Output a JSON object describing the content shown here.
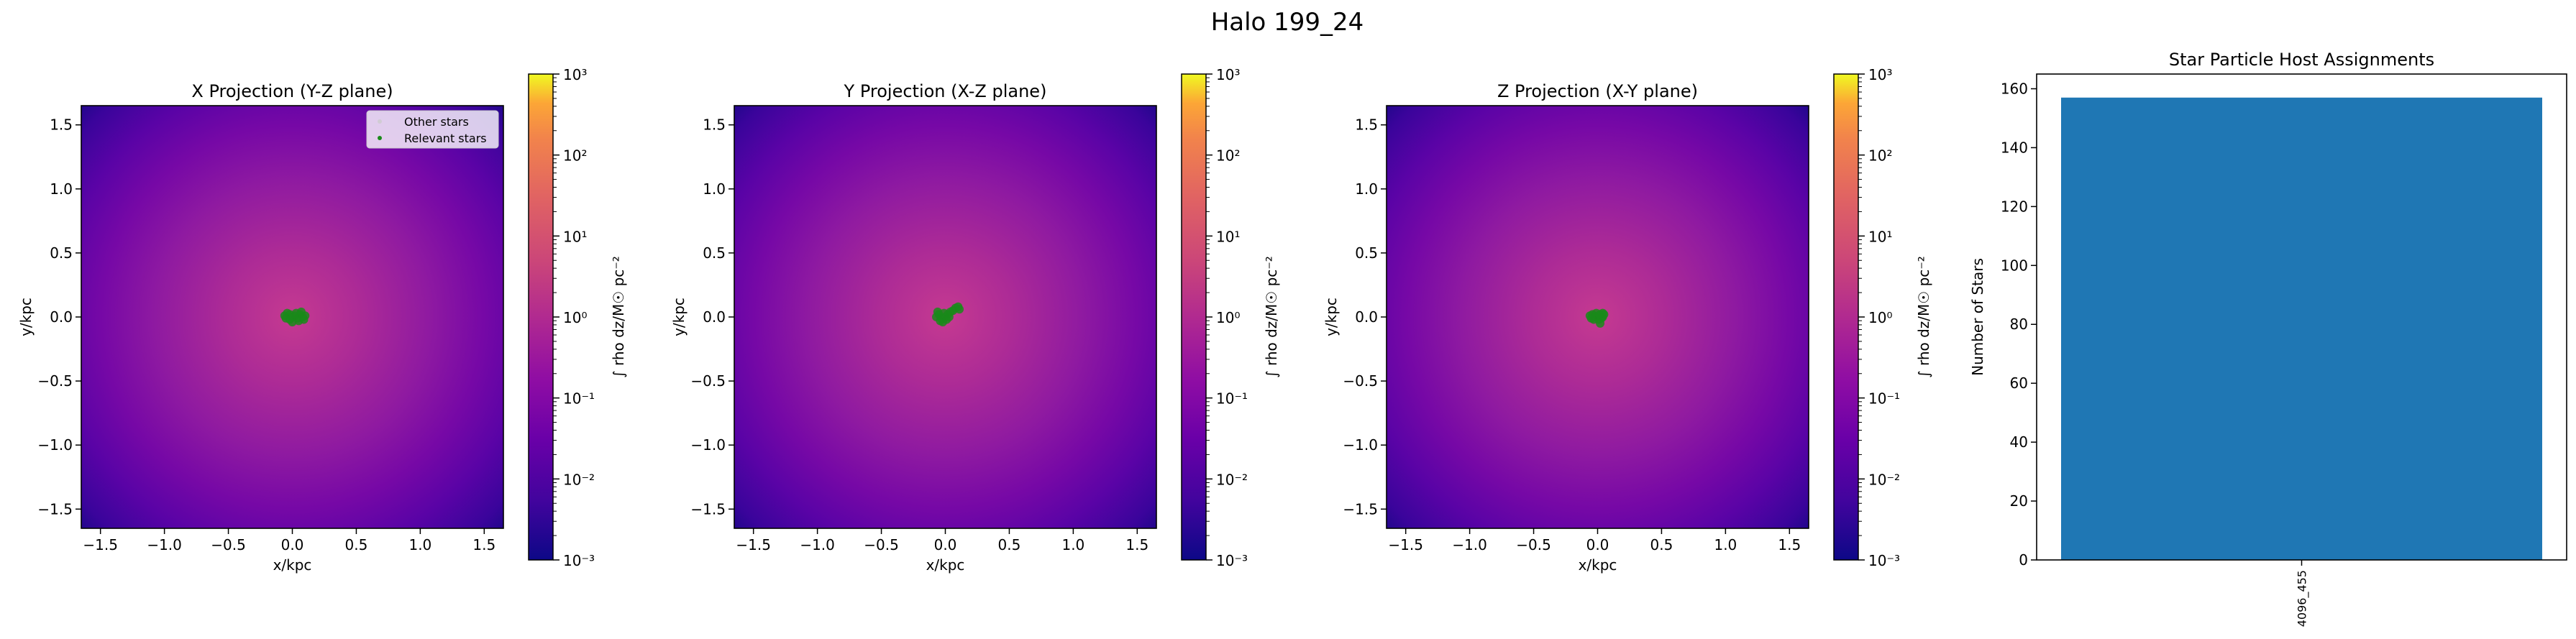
{
  "figure": {
    "suptitle": "Halo 199_24"
  },
  "chart_data": [
    {
      "type": "heatmap",
      "title": "X Projection (Y-Z plane)",
      "xlabel": "x/kpc",
      "ylabel": "y/kpc",
      "xlim": [
        -1.65,
        1.65
      ],
      "ylim": [
        -1.65,
        1.65
      ],
      "xticks": [
        -1.5,
        -1.0,
        -0.5,
        0.0,
        0.5,
        1.0,
        1.5
      ],
      "yticks": [
        -1.5,
        -1.0,
        -0.5,
        0.0,
        0.5,
        1.0,
        1.5
      ],
      "xtick_labels": [
        "−1.5",
        "−1.0",
        "−0.5",
        "0.0",
        "0.5",
        "1.0",
        "1.5"
      ],
      "ytick_labels": [
        "−1.5",
        "−1.0",
        "−0.5",
        "0.0",
        "0.5",
        "1.0",
        "1.5"
      ],
      "colormap": "plasma",
      "colorbar": {
        "label": "∫ rho dz/M☉ pc⁻²",
        "scale": "log",
        "range": [
          0.001,
          1000
        ],
        "tick_labels": [
          "10⁻³",
          "10⁻²",
          "10⁻¹",
          "10⁰",
          "10¹",
          "10²",
          "10³"
        ]
      },
      "legend": {
        "position": "upper right",
        "entries": [
          "Other stars",
          "Relevant stars"
        ]
      },
      "points_color": "#1a8a1a",
      "points": [
        [
          -0.06,
          0.01
        ],
        [
          -0.04,
          0.03
        ],
        [
          -0.02,
          0.02
        ],
        [
          0.0,
          0.0
        ],
        [
          0.02,
          0.01
        ],
        [
          0.04,
          -0.01
        ],
        [
          0.06,
          0.02
        ],
        [
          0.08,
          0.0
        ],
        [
          0.1,
          0.01
        ],
        [
          -0.05,
          -0.01
        ],
        [
          0.03,
          0.03
        ],
        [
          0.05,
          -0.03
        ],
        [
          0.0,
          -0.04
        ],
        [
          0.09,
          -0.02
        ],
        [
          -0.02,
          -0.02
        ],
        [
          0.07,
          0.04
        ]
      ]
    },
    {
      "type": "heatmap",
      "title": "Y Projection (X-Z plane)",
      "xlabel": "x/kpc",
      "ylabel": "y/kpc",
      "xlim": [
        -1.65,
        1.65
      ],
      "ylim": [
        -1.65,
        1.65
      ],
      "xticks": [
        -1.5,
        -1.0,
        -0.5,
        0.0,
        0.5,
        1.0,
        1.5
      ],
      "yticks": [
        -1.5,
        -1.0,
        -0.5,
        0.0,
        0.5,
        1.0,
        1.5
      ],
      "xtick_labels": [
        "−1.5",
        "−1.0",
        "−0.5",
        "0.0",
        "0.5",
        "1.0",
        "1.5"
      ],
      "ytick_labels": [
        "−1.5",
        "−1.0",
        "−0.5",
        "0.0",
        "0.5",
        "1.0",
        "1.5"
      ],
      "colormap": "plasma",
      "colorbar": {
        "label": "∫ rho dz/M☉ pc⁻²",
        "scale": "log",
        "range": [
          0.001,
          1000
        ],
        "tick_labels": [
          "10⁻³",
          "10⁻²",
          "10⁻¹",
          "10⁰",
          "10¹",
          "10²",
          "10³"
        ]
      },
      "points_color": "#1a8a1a",
      "points": [
        [
          -0.07,
          0.0
        ],
        [
          -0.05,
          0.02
        ],
        [
          -0.03,
          -0.01
        ],
        [
          -0.01,
          0.03
        ],
        [
          0.0,
          0.0
        ],
        [
          -0.04,
          -0.03
        ],
        [
          0.02,
          0.02
        ],
        [
          0.04,
          0.04
        ],
        [
          0.06,
          0.05
        ],
        [
          0.08,
          0.07
        ],
        [
          0.1,
          0.08
        ],
        [
          0.11,
          0.06
        ],
        [
          -0.02,
          -0.04
        ],
        [
          0.01,
          -0.02
        ],
        [
          0.03,
          0.0
        ],
        [
          -0.06,
          0.04
        ]
      ]
    },
    {
      "type": "heatmap",
      "title": "Z Projection (X-Y plane)",
      "xlabel": "x/kpc",
      "ylabel": "y/kpc",
      "xlim": [
        -1.65,
        1.65
      ],
      "ylim": [
        -1.65,
        1.65
      ],
      "xticks": [
        -1.5,
        -1.0,
        -0.5,
        0.0,
        0.5,
        1.0,
        1.5
      ],
      "yticks": [
        -1.5,
        -1.0,
        -0.5,
        0.0,
        0.5,
        1.0,
        1.5
      ],
      "xtick_labels": [
        "−1.5",
        "−1.0",
        "−0.5",
        "0.0",
        "0.5",
        "1.0",
        "1.5"
      ],
      "ytick_labels": [
        "−1.5",
        "−1.0",
        "−0.5",
        "0.0",
        "0.5",
        "1.0",
        "1.5"
      ],
      "colormap": "plasma",
      "colorbar": {
        "label": "∫ rho dz/M☉ pc⁻²",
        "scale": "log",
        "range": [
          0.001,
          1000
        ],
        "tick_labels": [
          "10⁻³",
          "10⁻²",
          "10⁻¹",
          "10⁰",
          "10¹",
          "10²",
          "10³"
        ]
      },
      "points_color": "#1a8a1a",
      "points": [
        [
          -0.06,
          0.01
        ],
        [
          -0.04,
          0.02
        ],
        [
          -0.02,
          0.0
        ],
        [
          0.0,
          0.01
        ],
        [
          0.02,
          0.02
        ],
        [
          0.04,
          0.0
        ],
        [
          0.05,
          0.02
        ],
        [
          -0.03,
          -0.02
        ],
        [
          0.01,
          -0.02
        ],
        [
          0.03,
          -0.01
        ],
        [
          -0.01,
          0.03
        ],
        [
          0.02,
          -0.05
        ],
        [
          0.04,
          0.03
        ],
        [
          -0.05,
          -0.01
        ]
      ]
    },
    {
      "type": "bar",
      "title": "Star Particle Host Assignments",
      "categories": [
        "4096_455"
      ],
      "values": [
        157
      ],
      "xlabel": "",
      "ylabel": "Number of Stars",
      "ylim": [
        0,
        165
      ],
      "yticks": [
        0,
        20,
        40,
        60,
        80,
        100,
        120,
        140,
        160
      ],
      "bar_color": "#1f77b4"
    }
  ]
}
